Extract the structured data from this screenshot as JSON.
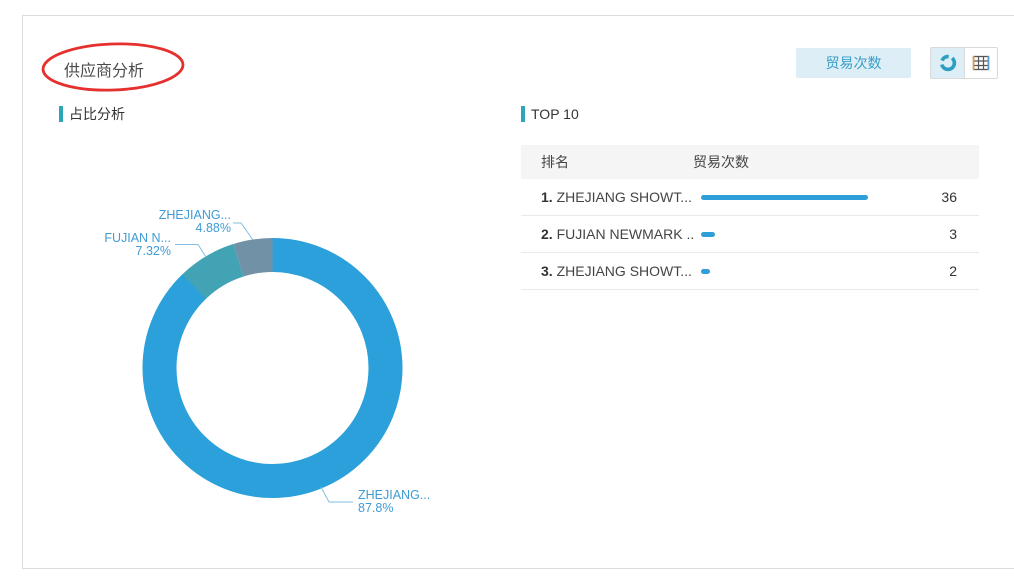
{
  "panel": {
    "title": "供应商分析",
    "metric_button_label": "贸易次数",
    "section_pie_label": "占比分析",
    "section_top_label": "TOP 10",
    "icons": {
      "chart_view": "donut-chart-icon",
      "table_view": "table-grid-icon"
    }
  },
  "table": {
    "headers": [
      "排名",
      "贸易次数"
    ],
    "rows": [
      {
        "rank": "1.",
        "name": "ZHEJIANG SHOWT...",
        "value": "36"
      },
      {
        "rank": "2.",
        "name": "FUJIAN NEWMARK ...",
        "value": "3"
      },
      {
        "rank": "3.",
        "name": "ZHEJIANG SHOWT...",
        "value": "2"
      }
    ]
  },
  "chart_data": [
    {
      "type": "pie",
      "title": "占比分析",
      "donut": true,
      "legend_position": "none",
      "slices": [
        {
          "label": "ZHEJIANG...",
          "value_pct": 87.8,
          "pct_label": "87.8%",
          "color": "#2ba0db"
        },
        {
          "label": "FUJIAN N...",
          "value_pct": 7.32,
          "pct_label": "7.32%",
          "color": "#41a3b3"
        },
        {
          "label": "ZHEJIANG...",
          "value_pct": 4.88,
          "pct_label": "4.88%",
          "color": "#7191a7"
        }
      ]
    },
    {
      "type": "bar",
      "title": "TOP 10",
      "orientation": "horizontal",
      "categories": [
        "ZHEJIANG SHOWT...",
        "FUJIAN NEWMARK ...",
        "ZHEJIANG SHOWT..."
      ],
      "values": [
        36,
        3,
        2
      ],
      "value_label": "贸易次数"
    }
  ],
  "colors": {
    "accent_teal": "#2ca5b8",
    "pie_blue": "#2ba0db",
    "pie_teal": "#41a3b3",
    "pie_gray": "#7191a7",
    "bar_blue": "#2e9fd8",
    "label_blue": "#3f9cd4",
    "button_bg": "#ddeef7",
    "button_text": "#3a9ec6",
    "annotation_red": "#e5302d"
  },
  "annotation": {
    "shape": "red-ellipse",
    "around": "供应商分析"
  }
}
